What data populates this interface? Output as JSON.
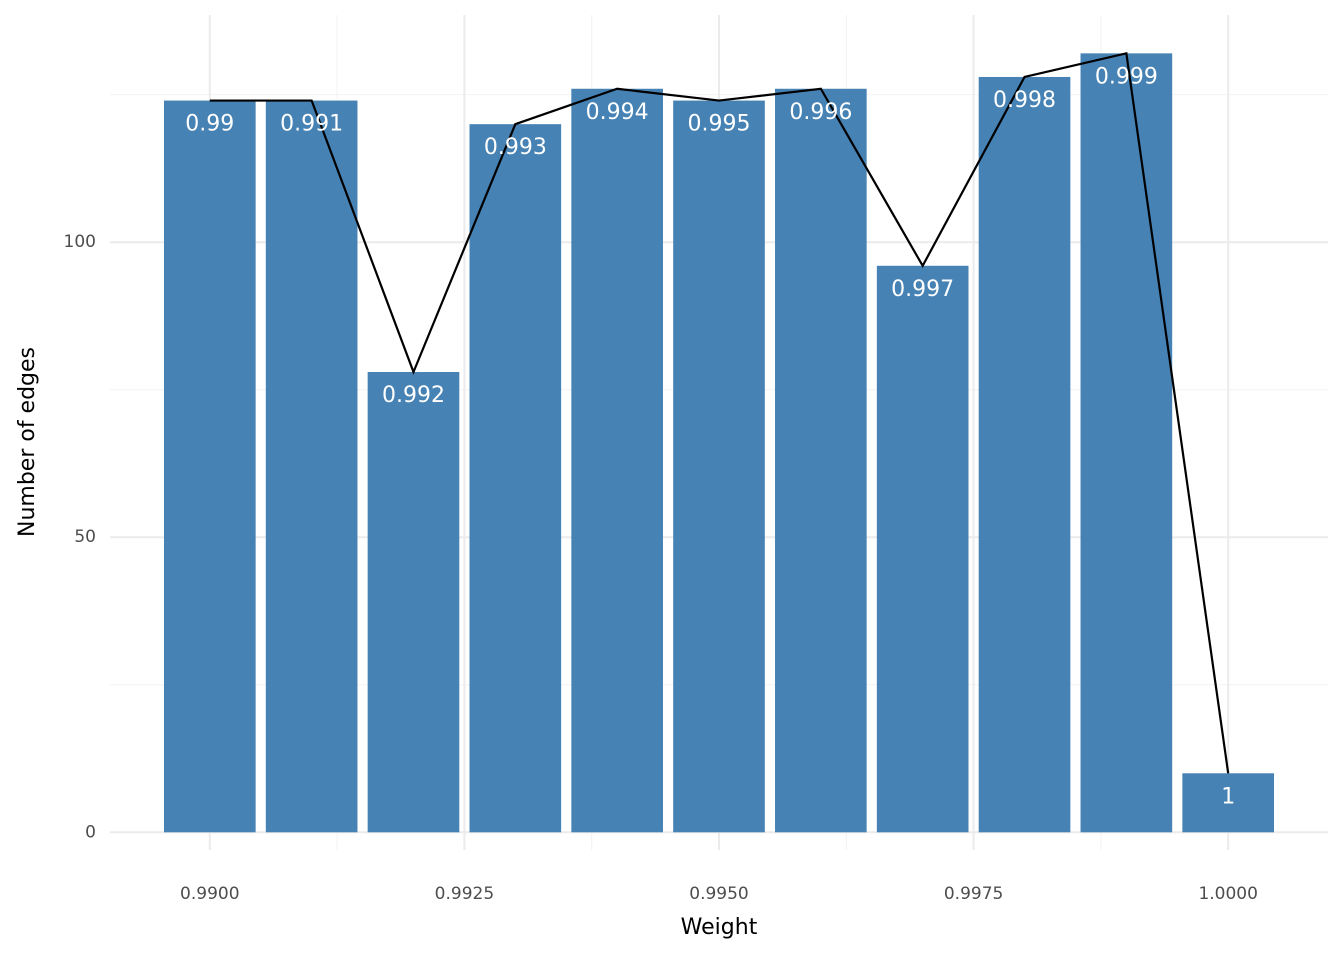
{
  "chart_data": {
    "type": "bar",
    "x_label": "Weight",
    "y_label": "Number of edges",
    "x": [
      0.99,
      0.991,
      0.992,
      0.993,
      0.994,
      0.995,
      0.996,
      0.997,
      0.998,
      0.999,
      1
    ],
    "values": [
      124,
      124,
      78,
      120,
      126,
      124,
      126,
      96,
      128,
      132,
      10
    ],
    "color": "#4682b4",
    "overlay_line": true,
    "line_color": "#000000",
    "xlim": [
      0.98902,
      1.00098
    ],
    "ylim": [
      -3,
      138.5
    ],
    "xticks": [
      {
        "value": 0.99,
        "label": "0.9900"
      },
      {
        "value": 0.9925,
        "label": "0.9925"
      },
      {
        "value": 0.995,
        "label": "0.9950"
      },
      {
        "value": 0.9975,
        "label": "0.9975"
      },
      {
        "value": 1,
        "label": "1.0000"
      }
    ],
    "yticks": [
      0,
      50,
      100
    ],
    "x_minor_ticks": [
      0.99125,
      0.99375,
      0.99625,
      0.99875
    ],
    "y_minor_ticks": [
      25,
      75,
      125
    ],
    "grid": true
  }
}
